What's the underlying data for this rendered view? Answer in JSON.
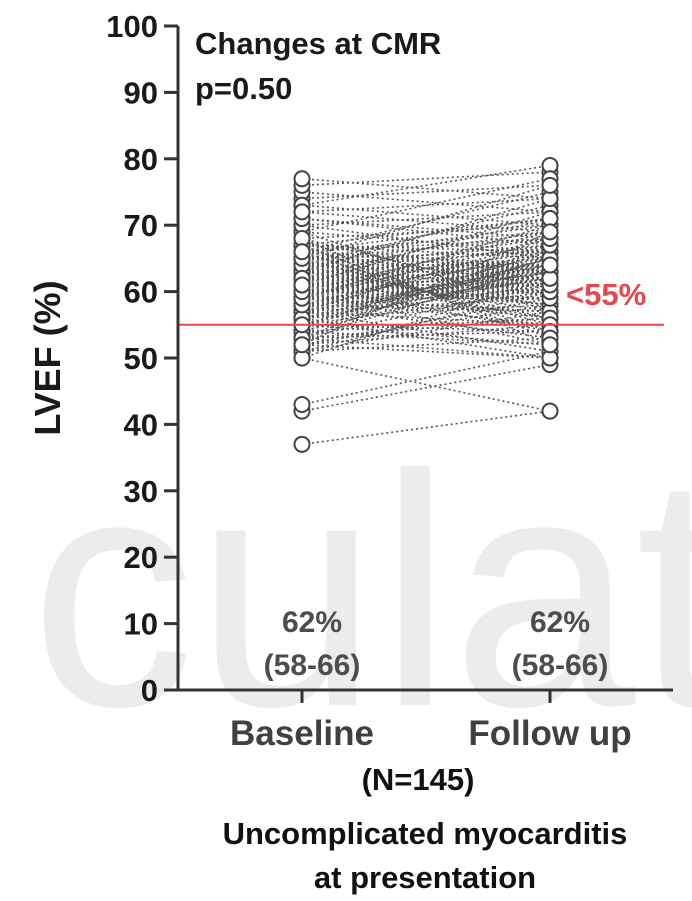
{
  "chart_data": {
    "type": "scatter",
    "subtype": "paired-dot (before/after)",
    "ylabel": "LVEF (%)",
    "ylim": [
      0,
      100
    ],
    "yticks": [
      "0",
      "10",
      "20",
      "30",
      "40",
      "50",
      "60",
      "70",
      "80",
      "90",
      "100"
    ],
    "categories": [
      "Baseline",
      "Follow up"
    ],
    "sample_size": "(N=145)",
    "footer": [
      "Uncomplicated myocarditis",
      "at presentation"
    ],
    "annotations": {
      "line1": "Changes at CMR",
      "line2": "p=0.50"
    },
    "threshold": {
      "value": 55,
      "label": "<55%",
      "color": "#e8474f"
    },
    "medians": [
      {
        "category": "Baseline",
        "value": "62%",
        "iqr": "(58-66)"
      },
      {
        "category": "Follow up",
        "value": "62%",
        "iqr": "(58-66)"
      }
    ],
    "pairs": [
      [
        37,
        42
      ],
      [
        42,
        49
      ],
      [
        43,
        51
      ],
      [
        50,
        42
      ],
      [
        52,
        50
      ],
      [
        51,
        53
      ],
      [
        53,
        50
      ],
      [
        54,
        56
      ],
      [
        55,
        52
      ],
      [
        56,
        58
      ],
      [
        57,
        55
      ],
      [
        58,
        60
      ],
      [
        59,
        57
      ],
      [
        60,
        62
      ],
      [
        61,
        59
      ],
      [
        62,
        64
      ],
      [
        63,
        61
      ],
      [
        64,
        66
      ],
      [
        65,
        63
      ],
      [
        66,
        68
      ],
      [
        67,
        65
      ],
      [
        68,
        70
      ],
      [
        69,
        66
      ],
      [
        70,
        72
      ],
      [
        71,
        68
      ],
      [
        72,
        74
      ],
      [
        73,
        70
      ],
      [
        74,
        76
      ],
      [
        75,
        72
      ],
      [
        76,
        78
      ],
      [
        77,
        74
      ],
      [
        73,
        79
      ],
      [
        69,
        77
      ],
      [
        66,
        75
      ],
      [
        64,
        73
      ],
      [
        62,
        71
      ],
      [
        60,
        69
      ],
      [
        58,
        67
      ],
      [
        56,
        65
      ],
      [
        54,
        63
      ],
      [
        53,
        61
      ],
      [
        52,
        59
      ],
      [
        51,
        57
      ],
      [
        52,
        55
      ],
      [
        53,
        54
      ],
      [
        55,
        60
      ],
      [
        56,
        62
      ],
      [
        57,
        64
      ],
      [
        58,
        66
      ],
      [
        59,
        68
      ],
      [
        60,
        56
      ],
      [
        61,
        58
      ],
      [
        62,
        60
      ],
      [
        63,
        62
      ],
      [
        64,
        64
      ],
      [
        65,
        66
      ],
      [
        66,
        61
      ],
      [
        67,
        63
      ],
      [
        68,
        59
      ],
      [
        69,
        57
      ],
      [
        70,
        65
      ],
      [
        71,
        67
      ],
      [
        72,
        69
      ],
      [
        60,
        52
      ],
      [
        61,
        54
      ],
      [
        62,
        56
      ],
      [
        63,
        58
      ],
      [
        64,
        60
      ],
      [
        65,
        62
      ],
      [
        66,
        64
      ],
      [
        67,
        66
      ],
      [
        58,
        53
      ],
      [
        59,
        55
      ],
      [
        57,
        51
      ],
      [
        56,
        50
      ],
      [
        55,
        54
      ],
      [
        54,
        52
      ],
      [
        53,
        56
      ],
      [
        52,
        58
      ],
      [
        51,
        60
      ],
      [
        50,
        62
      ],
      [
        53,
        64
      ],
      [
        55,
        66
      ],
      [
        57,
        68
      ],
      [
        59,
        70
      ],
      [
        61,
        72
      ],
      [
        63,
        74
      ],
      [
        65,
        76
      ],
      [
        67,
        71
      ],
      [
        62,
        65
      ],
      [
        61,
        63
      ],
      [
        60,
        61
      ],
      [
        59,
        59
      ],
      [
        58,
        57
      ],
      [
        57,
        59
      ],
      [
        56,
        61
      ],
      [
        55,
        63
      ],
      [
        54,
        65
      ],
      [
        53,
        67
      ],
      [
        52,
        69
      ],
      [
        57,
        62
      ],
      [
        58,
        63
      ],
      [
        59,
        64
      ],
      [
        60,
        65
      ],
      [
        61,
        66
      ],
      [
        62,
        67
      ],
      [
        63,
        68
      ],
      [
        64,
        69
      ],
      [
        65,
        70
      ],
      [
        66,
        71
      ],
      [
        62,
        58
      ],
      [
        63,
        57
      ],
      [
        64,
        56
      ],
      [
        65,
        55
      ],
      [
        66,
        54
      ],
      [
        67,
        53
      ],
      [
        68,
        52
      ],
      [
        60,
        59
      ],
      [
        61,
        60
      ],
      [
        62,
        61
      ],
      [
        63,
        63
      ],
      [
        64,
        62
      ],
      [
        65,
        64
      ],
      [
        66,
        63
      ],
      [
        59,
        61
      ],
      [
        58,
        62
      ],
      [
        57,
        63
      ],
      [
        56,
        64
      ],
      [
        55,
        65
      ],
      [
        60,
        63
      ],
      [
        61,
        62
      ],
      [
        62,
        62
      ],
      [
        63,
        64
      ],
      [
        64,
        63
      ],
      [
        58,
        60
      ],
      [
        59,
        60
      ],
      [
        60,
        60
      ],
      [
        61,
        61
      ],
      [
        62,
        63
      ],
      [
        63,
        65
      ],
      [
        64,
        67
      ],
      [
        65,
        68
      ],
      [
        66,
        69
      ],
      [
        62,
        62
      ],
      [
        61,
        64
      ]
    ]
  }
}
